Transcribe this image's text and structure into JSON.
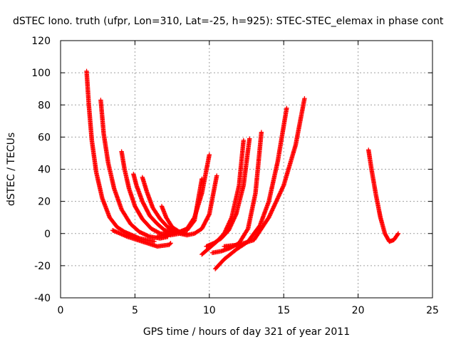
{
  "chart_data": {
    "type": "scatter",
    "title": "dSTEC Iono. truth (ufpr, Lon=310, Lat=-25, h=925): STEC-STEC_elemax in phase cont",
    "xlabel": "GPS time / hours of day 321 of year 2011",
    "ylabel": "dSTEC  / TECUs",
    "xlim": [
      0,
      25
    ],
    "ylim": [
      -40,
      120
    ],
    "xticks": [
      0,
      5,
      10,
      15,
      20,
      25
    ],
    "yticks": [
      -40,
      -20,
      0,
      20,
      40,
      60,
      80,
      100,
      120
    ],
    "grid": true,
    "marker": "plus",
    "color": "#ff0000",
    "series": [
      {
        "x": [
          1.75,
          1.9,
          2.1,
          2.4,
          2.8,
          3.3,
          3.8,
          4.3,
          4.8,
          5.3,
          5.8,
          6.3
        ],
        "y": [
          101,
          80,
          58,
          38,
          22,
          10,
          4,
          1,
          -1,
          -3,
          -4,
          -5
        ]
      },
      {
        "x": [
          2.7,
          2.9,
          3.2,
          3.6,
          4.1,
          4.7,
          5.3,
          6.0,
          6.7,
          7.2
        ],
        "y": [
          83,
          62,
          44,
          28,
          15,
          6,
          1,
          -2,
          -3,
          -2
        ]
      },
      {
        "x": [
          4.1,
          4.3,
          4.6,
          5.0,
          5.5,
          6.1,
          6.7,
          7.4,
          8.0
        ],
        "y": [
          51,
          40,
          28,
          17,
          9,
          3,
          0,
          -1,
          0
        ]
      },
      {
        "x": [
          4.9,
          5.1,
          5.5,
          6.0,
          6.5,
          7.0,
          7.5,
          8.0
        ],
        "y": [
          37,
          30,
          20,
          11,
          6,
          2,
          1,
          1
        ]
      },
      {
        "x": [
          5.5,
          5.8,
          6.2,
          6.7,
          7.2,
          7.8,
          8.3
        ],
        "y": [
          35,
          26,
          16,
          9,
          4,
          1,
          0
        ]
      },
      {
        "x": [
          6.8,
          7.1,
          7.5,
          8.0,
          8.5
        ],
        "y": [
          17,
          10,
          4,
          1,
          0
        ]
      },
      {
        "x": [
          3.5,
          4.5,
          5.5,
          6.5,
          7.3,
          7.4
        ],
        "y": [
          2,
          -2,
          -5,
          -8,
          -7,
          -6
        ]
      },
      {
        "x": [
          6.5,
          7.0,
          7.5,
          8.0,
          8.5,
          9.0,
          9.5,
          10.0
        ],
        "y": [
          -2,
          -1,
          0,
          1,
          3,
          10,
          25,
          49
        ]
      },
      {
        "x": [
          7.0,
          7.5,
          8.0,
          8.5,
          9.0,
          9.5
        ],
        "y": [
          1,
          1,
          1,
          2,
          8,
          34
        ]
      },
      {
        "x": [
          8.0,
          8.5,
          9.0,
          9.5,
          10.0,
          10.5
        ],
        "y": [
          0,
          -1,
          0,
          3,
          12,
          36
        ]
      },
      {
        "x": [
          9.5,
          10.0,
          10.5,
          11.0,
          11.5,
          12.0,
          12.3
        ],
        "y": [
          -13,
          -9,
          -5,
          0,
          10,
          30,
          58
        ]
      },
      {
        "x": [
          9.8,
          10.3,
          10.8,
          11.3,
          11.8,
          12.3,
          12.7
        ],
        "y": [
          -8,
          -6,
          -3,
          2,
          12,
          30,
          59
        ]
      },
      {
        "x": [
          10.2,
          10.8,
          11.4,
          12.0,
          12.6,
          13.1,
          13.5
        ],
        "y": [
          -12,
          -11,
          -9,
          -6,
          3,
          25,
          63
        ]
      },
      {
        "x": [
          10.4,
          11.0,
          11.8,
          12.6,
          13.4,
          14.0,
          14.6,
          15.2
        ],
        "y": [
          -22,
          -16,
          -10,
          -5,
          5,
          20,
          45,
          78
        ]
      },
      {
        "x": [
          11.0,
          12.0,
          13.0,
          14.0,
          15.0,
          15.8,
          16.4
        ],
        "y": [
          -8,
          -7,
          -4,
          10,
          30,
          55,
          84
        ]
      },
      {
        "x": [
          20.7,
          20.9,
          21.2,
          21.5,
          21.8,
          22.1,
          22.4,
          22.7
        ],
        "y": [
          52,
          40,
          24,
          10,
          0,
          -5,
          -4,
          0
        ]
      }
    ]
  }
}
